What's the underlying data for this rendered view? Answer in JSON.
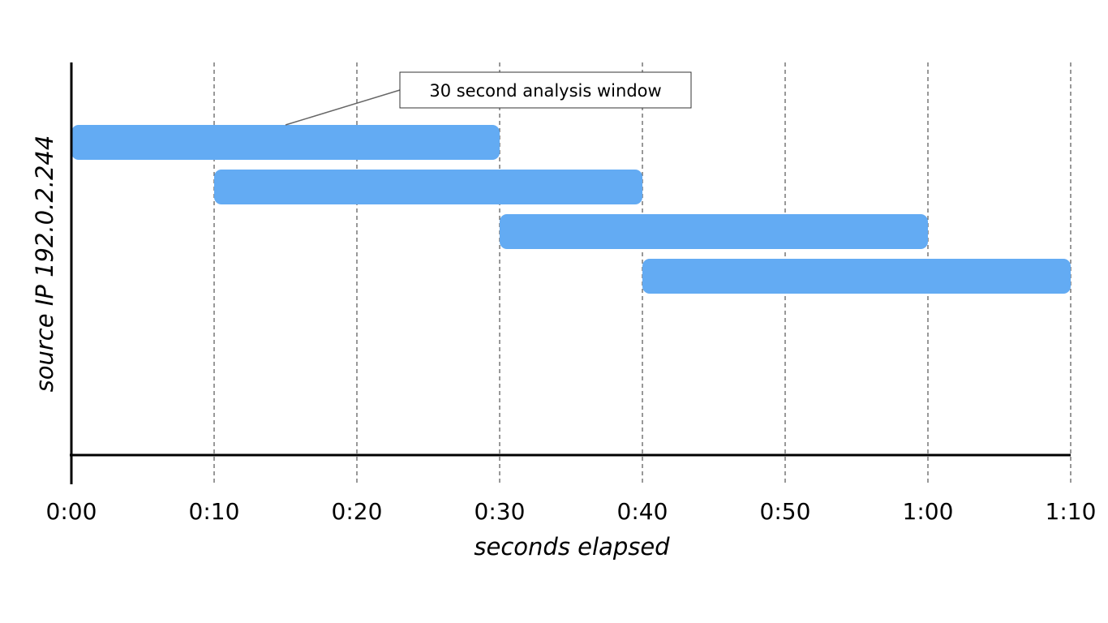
{
  "chart_data": {
    "type": "bar",
    "orientation": "horizontal-ranges",
    "xlabel": "seconds elapsed",
    "ylabel": "source IP 192.0.2.244",
    "x_unit": "seconds",
    "xlim": [
      0,
      70
    ],
    "x_ticks": [
      {
        "value": 0,
        "label": "0:00"
      },
      {
        "value": 10,
        "label": "0:10"
      },
      {
        "value": 20,
        "label": "0:20"
      },
      {
        "value": 30,
        "label": "0:30"
      },
      {
        "value": 40,
        "label": "0:40"
      },
      {
        "value": 50,
        "label": "0:50"
      },
      {
        "value": 60,
        "label": "1:00"
      },
      {
        "value": 70,
        "label": "1:10"
      }
    ],
    "grid": "vertical dashed",
    "bar_color": "#63abf3",
    "windows": [
      {
        "start": 0,
        "end": 30
      },
      {
        "start": 10,
        "end": 40
      },
      {
        "start": 30,
        "end": 60
      },
      {
        "start": 40,
        "end": 70
      }
    ],
    "annotation": {
      "text": "30 second analysis window",
      "target_window": 0
    }
  }
}
